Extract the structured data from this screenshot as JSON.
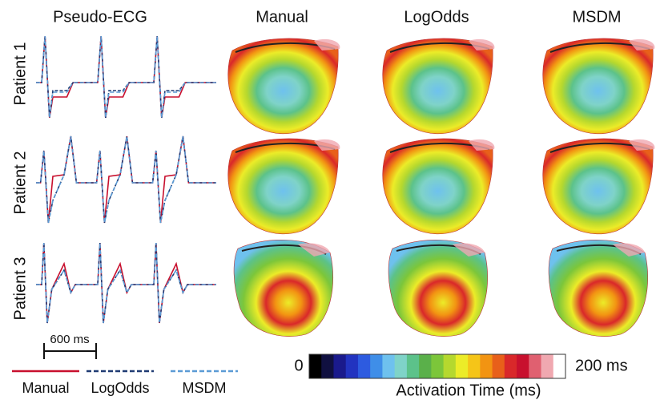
{
  "columns": [
    "Pseudo-ECG",
    "Manual",
    "LogOdds",
    "MSDM"
  ],
  "rows": [
    "Patient 1",
    "Patient 2",
    "Patient 3"
  ],
  "scale_bar": "600 ms",
  "legend": [
    {
      "label": "Manual",
      "color": "#c8102e"
    },
    {
      "label": "LogOdds",
      "color": "#1f3b73"
    },
    {
      "label": "MSDM",
      "color": "#5b9bd5"
    }
  ],
  "colorbar": {
    "min_label": "0",
    "max_label": "200 ms",
    "title": "Activation Time (ms)",
    "colors": [
      "#000000",
      "#101040",
      "#1a1a8c",
      "#2233c0",
      "#2d5be0",
      "#3f8ee8",
      "#6ec1ee",
      "#7fd3c8",
      "#5cc28a",
      "#5ab04a",
      "#7cc63a",
      "#b5d82e",
      "#ecec28",
      "#f5c518",
      "#f29412",
      "#e8601a",
      "#d9282a",
      "#c8102e",
      "#e06070",
      "#f0a8b0",
      "#ffffff"
    ]
  }
}
